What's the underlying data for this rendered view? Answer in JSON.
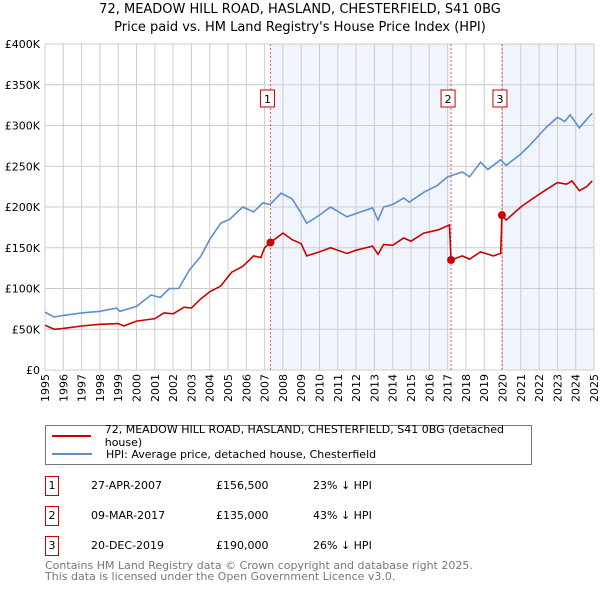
{
  "chart_data": {
    "type": "line",
    "title": "72, MEADOW HILL ROAD, HASLAND, CHESTERFIELD, S41 0BG",
    "subtitle": "Price paid vs. HM Land Registry's House Price Index (HPI)",
    "xlim": [
      1995,
      2025
    ],
    "ylim": [
      0,
      400000
    ],
    "x_ticks": [
      "1995",
      "1996",
      "1997",
      "1998",
      "1999",
      "2000",
      "2001",
      "2002",
      "2003",
      "2004",
      "2005",
      "2006",
      "2007",
      "2008",
      "2009",
      "2010",
      "2011",
      "2012",
      "2013",
      "2014",
      "2015",
      "2016",
      "2017",
      "2018",
      "2019",
      "2020",
      "2021",
      "2022",
      "2023",
      "2024",
      "2025"
    ],
    "y_ticks": [
      {
        "v": 0,
        "label": "£0"
      },
      {
        "v": 50000,
        "label": "£50K"
      },
      {
        "v": 100000,
        "label": "£100K"
      },
      {
        "v": 150000,
        "label": "£150K"
      },
      {
        "v": 200000,
        "label": "£200K"
      },
      {
        "v": 250000,
        "label": "£250K"
      },
      {
        "v": 300000,
        "label": "£300K"
      },
      {
        "v": 350000,
        "label": "£350K"
      },
      {
        "v": 400000,
        "label": "£400K"
      }
    ],
    "grid": true,
    "shaded_ranges": [
      [
        2007.32,
        2017.19
      ],
      [
        2019.97,
        2025
      ]
    ],
    "series": [
      {
        "name": "72, MEADOW HILL ROAD, HASLAND, CHESTERFIELD, S41 0BG (detached house)",
        "color": "#cc0000",
        "points": [
          [
            1995,
            55
          ],
          [
            1995.5,
            50
          ],
          [
            1996,
            51
          ],
          [
            1997,
            54
          ],
          [
            1998,
            56
          ],
          [
            1999,
            57
          ],
          [
            1999.3,
            54
          ],
          [
            2000,
            60
          ],
          [
            2001,
            63
          ],
          [
            2001.5,
            70
          ],
          [
            2002,
            69
          ],
          [
            2002.6,
            77
          ],
          [
            2003,
            76
          ],
          [
            2003.5,
            87
          ],
          [
            2004,
            96
          ],
          [
            2004.6,
            103
          ],
          [
            2005.2,
            120
          ],
          [
            2005.8,
            127
          ],
          [
            2006.4,
            140
          ],
          [
            2006.8,
            138
          ],
          [
            2007,
            150
          ],
          [
            2007.32,
            156.5
          ],
          [
            2008,
            168
          ],
          [
            2008.5,
            160
          ],
          [
            2009,
            155
          ],
          [
            2009.3,
            140
          ],
          [
            2010,
            145
          ],
          [
            2010.6,
            150
          ],
          [
            2011.5,
            143
          ],
          [
            2012,
            147
          ],
          [
            2012.9,
            152
          ],
          [
            2013.2,
            142
          ],
          [
            2013.5,
            154
          ],
          [
            2014,
            153
          ],
          [
            2014.6,
            162
          ],
          [
            2015,
            158
          ],
          [
            2015.7,
            168
          ],
          [
            2016.5,
            172
          ],
          [
            2017.1,
            178
          ],
          [
            2017.19,
            135
          ],
          [
            2017.8,
            140
          ],
          [
            2018.2,
            136
          ],
          [
            2018.8,
            145
          ],
          [
            2019.5,
            140
          ],
          [
            2019.9,
            143
          ],
          [
            2019.97,
            190
          ],
          [
            2020.2,
            184
          ],
          [
            2021,
            200
          ],
          [
            2021.5,
            208
          ],
          [
            2022.3,
            220
          ],
          [
            2023,
            230
          ],
          [
            2023.5,
            228
          ],
          [
            2023.8,
            232
          ],
          [
            2024.2,
            220
          ],
          [
            2024.6,
            225
          ],
          [
            2024.9,
            232
          ]
        ]
      },
      {
        "name": "HPI: Average price, detached house, Chesterfield",
        "color": "#5b8fd0",
        "points": [
          [
            1995,
            71
          ],
          [
            1995.5,
            65
          ],
          [
            1996,
            67
          ],
          [
            1997,
            70
          ],
          [
            1998,
            72
          ],
          [
            1998.9,
            76
          ],
          [
            1999.1,
            72
          ],
          [
            2000,
            78
          ],
          [
            2000.8,
            92
          ],
          [
            2001.3,
            89
          ],
          [
            2001.8,
            100
          ],
          [
            2002.3,
            100
          ],
          [
            2002.9,
            123
          ],
          [
            2003.5,
            139
          ],
          [
            2004,
            160
          ],
          [
            2004.6,
            180
          ],
          [
            2005.1,
            185
          ],
          [
            2005.8,
            200
          ],
          [
            2006.4,
            194
          ],
          [
            2006.9,
            205
          ],
          [
            2007.3,
            203
          ],
          [
            2007.9,
            217
          ],
          [
            2008.5,
            210
          ],
          [
            2008.9,
            196
          ],
          [
            2009.3,
            180
          ],
          [
            2010,
            190
          ],
          [
            2010.6,
            200
          ],
          [
            2011.5,
            188
          ],
          [
            2012,
            192
          ],
          [
            2012.9,
            199
          ],
          [
            2013.2,
            184
          ],
          [
            2013.5,
            200
          ],
          [
            2014,
            203
          ],
          [
            2014.6,
            211
          ],
          [
            2014.9,
            206
          ],
          [
            2015.7,
            218
          ],
          [
            2016.4,
            226
          ],
          [
            2017,
            237
          ],
          [
            2017.8,
            243
          ],
          [
            2018.2,
            237
          ],
          [
            2018.8,
            255
          ],
          [
            2019.2,
            246
          ],
          [
            2019.9,
            258
          ],
          [
            2020.2,
            251
          ],
          [
            2021,
            265
          ],
          [
            2021.5,
            276
          ],
          [
            2022.4,
            298
          ],
          [
            2023,
            310
          ],
          [
            2023.4,
            305
          ],
          [
            2023.7,
            313
          ],
          [
            2024.2,
            297
          ],
          [
            2024.5,
            305
          ],
          [
            2024.9,
            315
          ]
        ]
      }
    ],
    "sales": [
      {
        "label": "1",
        "x": 2007.32,
        "value": 156500
      },
      {
        "label": "2",
        "x": 2017.19,
        "value": 135000
      },
      {
        "label": "3",
        "x": 2019.97,
        "value": 190000
      }
    ]
  },
  "title": "72, MEADOW HILL ROAD, HASLAND, CHESTERFIELD, S41 0BG",
  "subtitle": "Price paid vs. HM Land Registry's House Price Index (HPI)",
  "legend": [
    "72, MEADOW HILL ROAD, HASLAND, CHESTERFIELD, S41 0BG (detached house)",
    "HPI: Average price, detached house, Chesterfield"
  ],
  "transactions": [
    {
      "num": "1",
      "date": "27-APR-2007",
      "price": "£156,500",
      "hpi": "23% ↓ HPI"
    },
    {
      "num": "2",
      "date": "09-MAR-2017",
      "price": "£135,000",
      "hpi": "43% ↓ HPI"
    },
    {
      "num": "3",
      "date": "20-DEC-2019",
      "price": "£190,000",
      "hpi": "26% ↓ HPI"
    }
  ],
  "footer": [
    "Contains HM Land Registry data © Crown copyright and database right 2025.",
    "This data is licensed under the Open Government Licence v3.0."
  ]
}
